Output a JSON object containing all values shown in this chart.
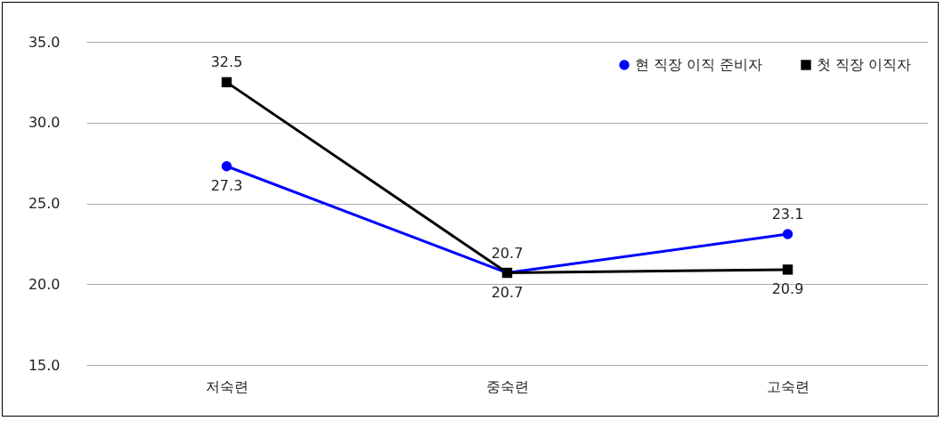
{
  "chart_data": {
    "type": "line",
    "categories": [
      "저숙련",
      "중숙련",
      "고숙련"
    ],
    "series": [
      {
        "name": "현 직장 이직 준비자",
        "color": "#0000ff",
        "marker": "circle",
        "values": [
          27.3,
          20.7,
          23.1
        ]
      },
      {
        "name": "첫 직장 이직자",
        "color": "#000000",
        "marker": "square",
        "values": [
          32.5,
          20.7,
          20.9
        ]
      }
    ],
    "ylim": [
      15,
      35
    ],
    "yticks": [
      {
        "value": 15,
        "label": "15.0"
      },
      {
        "value": 20,
        "label": "20.0"
      },
      {
        "value": 25,
        "label": "25.0"
      },
      {
        "value": 30,
        "label": "30.0"
      },
      {
        "value": 35,
        "label": "35.0"
      }
    ],
    "grid": "y",
    "legend": "top right",
    "data_labels": true
  }
}
